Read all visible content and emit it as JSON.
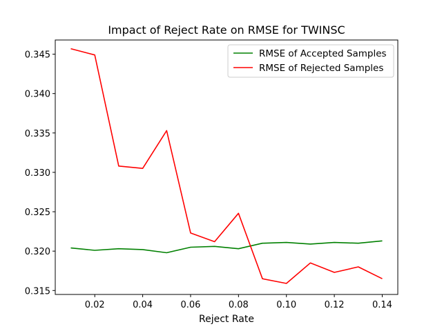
{
  "chart_data": {
    "type": "line",
    "title": "Impact of Reject Rate on RMSE for TWINSC",
    "xlabel": "Reject Rate",
    "ylabel": "",
    "x": [
      0.01,
      0.02,
      0.03,
      0.04,
      0.05,
      0.06,
      0.07,
      0.08,
      0.09,
      0.1,
      0.11,
      0.12,
      0.13,
      0.14
    ],
    "xlim": [
      0.0035,
      0.1465
    ],
    "ylim": [
      0.3145,
      0.3468
    ],
    "xticks": [
      0.02,
      0.04,
      0.06,
      0.08,
      0.1,
      0.12,
      0.14
    ],
    "xtick_labels": [
      "0.02",
      "0.04",
      "0.06",
      "0.08",
      "0.10",
      "0.12",
      "0.14"
    ],
    "yticks": [
      0.315,
      0.32,
      0.325,
      0.33,
      0.335,
      0.34,
      0.345
    ],
    "ytick_labels": [
      "0.315",
      "0.320",
      "0.325",
      "0.330",
      "0.335",
      "0.340",
      "0.345"
    ],
    "grid": false,
    "legend_position": "top-right",
    "series": [
      {
        "name": "RMSE of Accepted Samples",
        "color": "#008000",
        "values": [
          0.3204,
          0.3201,
          0.3203,
          0.3202,
          0.3198,
          0.3205,
          0.3206,
          0.3203,
          0.321,
          0.3211,
          0.3209,
          0.3211,
          0.321,
          0.3213
        ]
      },
      {
        "name": "RMSE of Rejected Samples",
        "color": "#ff0000",
        "values": [
          0.3457,
          0.3449,
          0.3308,
          0.3305,
          0.3353,
          0.3223,
          0.3212,
          0.3248,
          0.3165,
          0.3159,
          0.3185,
          0.3173,
          0.318,
          0.3165
        ]
      }
    ]
  }
}
